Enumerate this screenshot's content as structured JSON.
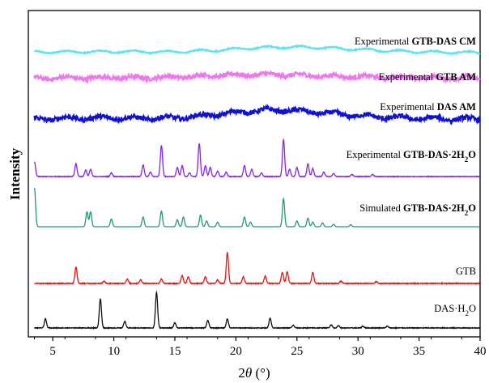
{
  "chart_data": {
    "type": "line",
    "title": "",
    "xlabel": "2θ (°)",
    "ylabel": "Intensity",
    "xlim": [
      3,
      40
    ],
    "xticks": [
      5,
      10,
      15,
      20,
      25,
      30,
      35,
      40
    ],
    "xtick_labels": [
      "5",
      "10",
      "15",
      "20",
      "25",
      "30",
      "35",
      "40"
    ],
    "grid": false,
    "legend": "none",
    "series": [
      {
        "name": "Experimental GTB-DAS CM",
        "label_parts": [
          {
            "text": "Experimental ",
            "bold": false
          },
          {
            "text": "GTB-DAS CM",
            "bold": true
          }
        ],
        "kind": "amorphous",
        "color": "#5ee3ef",
        "amplitude": 0.25,
        "noise": 0.05,
        "peaks": [
          [
            6,
            0.1,
            3.0
          ],
          [
            11,
            0.1,
            2.0
          ],
          [
            24,
            0.75,
            4.5
          ],
          [
            31,
            0.15,
            4.0
          ]
        ]
      },
      {
        "name": "Experimental GTB AM",
        "label_parts": [
          {
            "text": "Experimental ",
            "bold": false
          },
          {
            "text": "GTB AM",
            "bold": true
          }
        ],
        "kind": "amorphous",
        "color": "#ee77ee",
        "amplitude": 0.2,
        "noise": 0.18,
        "peaks": [
          [
            8,
            0.12,
            3.0
          ],
          [
            22,
            0.65,
            5.0
          ],
          [
            33,
            0.15,
            4.0
          ]
        ]
      },
      {
        "name": "Experimental DAS AM",
        "label_parts": [
          {
            "text": "Experimental ",
            "bold": false
          },
          {
            "text": "DAS AM",
            "bold": true
          }
        ],
        "kind": "amorphous",
        "color": "#1010dd",
        "amplitude": 0.28,
        "noise": 0.15,
        "peaks": [
          [
            9,
            0.1,
            3.0
          ],
          [
            23,
            0.8,
            4.0
          ],
          [
            30,
            0.15,
            3.5
          ]
        ]
      },
      {
        "name": "Experimental GTB-DAS·2H2O",
        "label_parts": [
          {
            "text": "Experimental ",
            "bold": false
          },
          {
            "text": "GTB-DAS·2H",
            "bold": true
          },
          {
            "text": "2",
            "bold": true,
            "sub": true
          },
          {
            "text": "O",
            "bold": true
          }
        ],
        "kind": "crystalline",
        "color": "#8822ee",
        "noise": 0.015,
        "peaks": [
          [
            3.5,
            0.4
          ],
          [
            6.9,
            0.35
          ],
          [
            7.7,
            0.18
          ],
          [
            8.1,
            0.2
          ],
          [
            9.8,
            0.1
          ],
          [
            12.4,
            0.32
          ],
          [
            13.0,
            0.12
          ],
          [
            13.9,
            0.85
          ],
          [
            15.2,
            0.25
          ],
          [
            15.6,
            0.3
          ],
          [
            16.2,
            0.1
          ],
          [
            17.0,
            0.9
          ],
          [
            17.5,
            0.3
          ],
          [
            17.9,
            0.25
          ],
          [
            18.5,
            0.15
          ],
          [
            19.2,
            0.12
          ],
          [
            20.7,
            0.3
          ],
          [
            21.3,
            0.2
          ],
          [
            22.1,
            0.1
          ],
          [
            23.9,
            1.0
          ],
          [
            24.4,
            0.2
          ],
          [
            25.0,
            0.25
          ],
          [
            25.9,
            0.35
          ],
          [
            26.3,
            0.22
          ],
          [
            27.2,
            0.12
          ],
          [
            28.0,
            0.08
          ],
          [
            29.5,
            0.06
          ],
          [
            31.2,
            0.06
          ]
        ]
      },
      {
        "name": "Simulated GTB-DAS·2H2O",
        "label_parts": [
          {
            "text": "Simulated ",
            "bold": false
          },
          {
            "text": "GTB-DAS·2H",
            "bold": true
          },
          {
            "text": "2",
            "bold": true,
            "sub": true
          },
          {
            "text": "O",
            "bold": true
          }
        ],
        "kind": "crystalline",
        "color": "#229977",
        "noise": 0.0,
        "peaks": [
          [
            3.5,
            1.0
          ],
          [
            7.8,
            0.38
          ],
          [
            8.1,
            0.38
          ],
          [
            9.8,
            0.2
          ],
          [
            12.4,
            0.25
          ],
          [
            13.9,
            0.4
          ],
          [
            15.2,
            0.18
          ],
          [
            15.7,
            0.25
          ],
          [
            17.1,
            0.3
          ],
          [
            17.6,
            0.15
          ],
          [
            18.5,
            0.12
          ],
          [
            20.7,
            0.25
          ],
          [
            21.2,
            0.12
          ],
          [
            23.9,
            0.72
          ],
          [
            25.0,
            0.15
          ],
          [
            25.9,
            0.22
          ],
          [
            26.3,
            0.12
          ],
          [
            27.1,
            0.1
          ],
          [
            28.0,
            0.06
          ],
          [
            29.4,
            0.05
          ]
        ]
      },
      {
        "name": "GTB",
        "label_parts": [
          {
            "text": "GTB",
            "bold": false
          }
        ],
        "kind": "crystalline",
        "color": "#ee1111",
        "noise": 0.02,
        "peaks": [
          [
            6.9,
            0.45
          ],
          [
            9.2,
            0.06
          ],
          [
            11.1,
            0.12
          ],
          [
            12.2,
            0.1
          ],
          [
            13.9,
            0.12
          ],
          [
            15.6,
            0.22
          ],
          [
            16.1,
            0.18
          ],
          [
            17.5,
            0.18
          ],
          [
            18.5,
            0.1
          ],
          [
            19.3,
            0.85
          ],
          [
            20.6,
            0.18
          ],
          [
            22.4,
            0.2
          ],
          [
            23.8,
            0.3
          ],
          [
            24.2,
            0.32
          ],
          [
            26.3,
            0.3
          ],
          [
            28.6,
            0.06
          ],
          [
            31.5,
            0.05
          ]
        ]
      },
      {
        "name": "DAS·H2O",
        "label_parts": [
          {
            "text": "DAS·H",
            "bold": false
          },
          {
            "text": "2",
            "bold": false,
            "sub": true
          },
          {
            "text": "O",
            "bold": false
          }
        ],
        "kind": "crystalline",
        "color": "#111111",
        "noise": 0.015,
        "peaks": [
          [
            4.4,
            0.2
          ],
          [
            8.9,
            0.65
          ],
          [
            10.9,
            0.15
          ],
          [
            13.5,
            0.8
          ],
          [
            15.0,
            0.12
          ],
          [
            17.7,
            0.17
          ],
          [
            19.3,
            0.2
          ],
          [
            22.8,
            0.22
          ],
          [
            24.7,
            0.06
          ],
          [
            27.8,
            0.07
          ],
          [
            28.4,
            0.05
          ],
          [
            30.4,
            0.04
          ],
          [
            32.4,
            0.04
          ]
        ]
      }
    ]
  }
}
